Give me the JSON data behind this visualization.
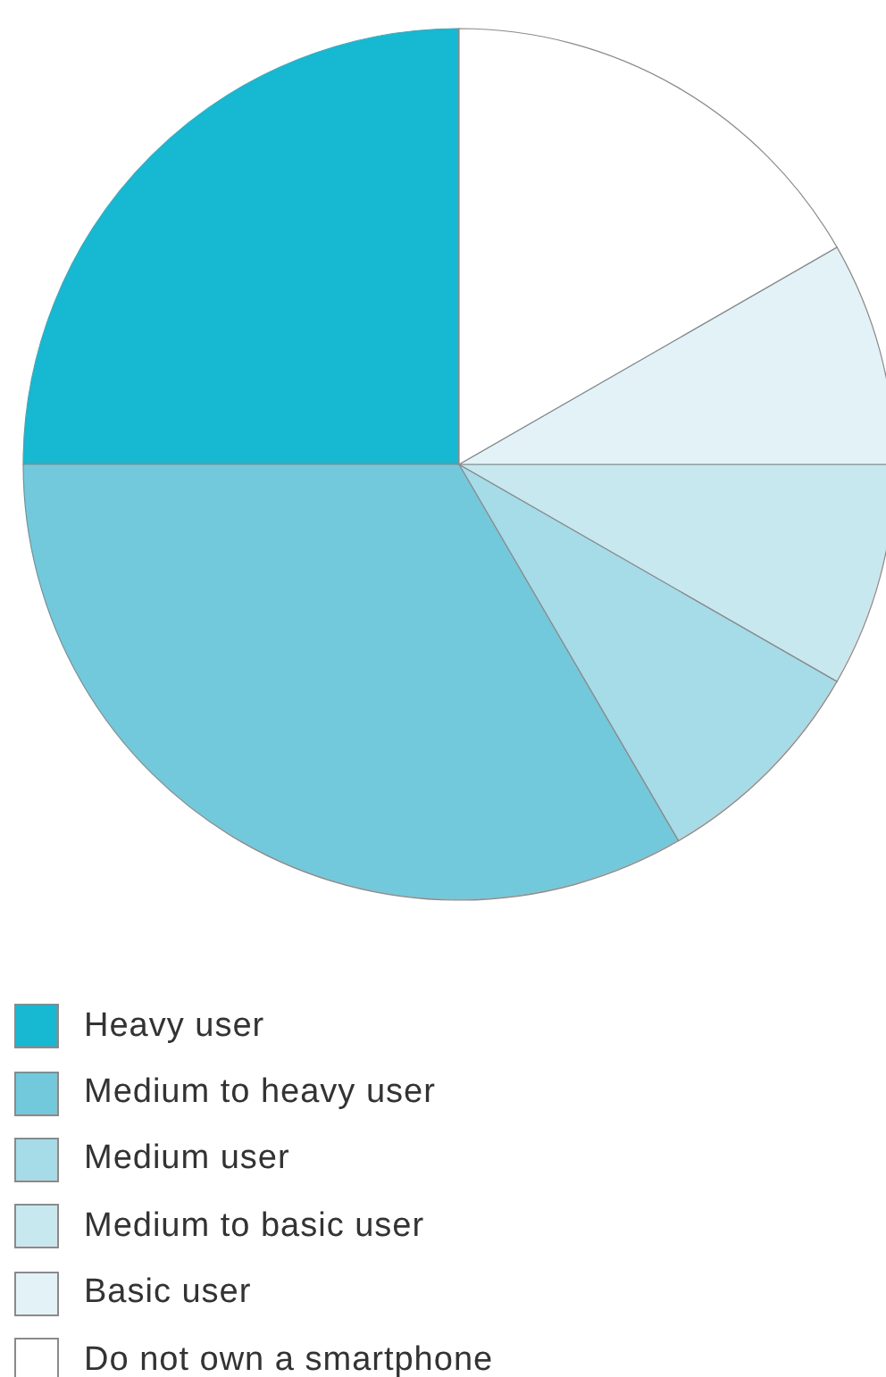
{
  "chart_data": {
    "type": "pie",
    "categories": [
      "Heavy user",
      "Medium to heavy user",
      "Medium user",
      "Medium to basic user",
      "Basic user",
      "Do not own a smartphone"
    ],
    "values": [
      25,
      33.4,
      8.3,
      8.3,
      8.3,
      16.7
    ],
    "colors": [
      "#16b8d2",
      "#72c9dc",
      "#a6dbe8",
      "#c8e8ef",
      "#e2f2f7",
      "#ffffff"
    ],
    "legend": "bottom"
  }
}
